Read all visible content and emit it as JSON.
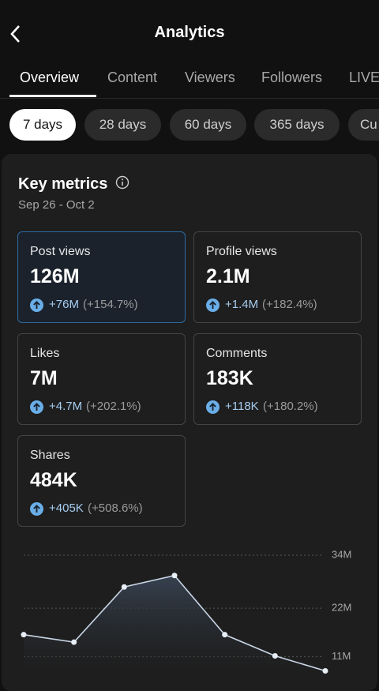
{
  "header": {
    "title": "Analytics"
  },
  "tabs": [
    "Overview",
    "Content",
    "Viewers",
    "Followers",
    "LIVE"
  ],
  "ranges": [
    "7 days",
    "28 days",
    "60 days",
    "365 days",
    "Cu"
  ],
  "section": {
    "title": "Key metrics",
    "dates": "Sep 26 - Oct 2"
  },
  "metrics": [
    {
      "label": "Post views",
      "value": "126M",
      "change": "+76M",
      "pct": "(+154.7%)"
    },
    {
      "label": "Profile views",
      "value": "2.1M",
      "change": "+1.4M",
      "pct": "(+182.4%)"
    },
    {
      "label": "Likes",
      "value": "7M",
      "change": "+4.7M",
      "pct": "(+202.1%)"
    },
    {
      "label": "Comments",
      "value": "183K",
      "change": "+118K",
      "pct": "(+180.2%)"
    },
    {
      "label": "Shares",
      "value": "484K",
      "change": "+405K",
      "pct": "(+508.6%)"
    }
  ],
  "chart": {
    "type": "line",
    "color": "#c9d6e6",
    "values": [
      16000000,
      14300000,
      26800000,
      29400000,
      16000000,
      11200000,
      7800000
    ],
    "ylim": [
      7000000,
      34000000
    ],
    "yticks": [
      {
        "value": 34000000,
        "label": "34M"
      },
      {
        "value": 22000000,
        "label": "22M"
      },
      {
        "value": 11000000,
        "label": "11M"
      }
    ],
    "grid": true
  }
}
